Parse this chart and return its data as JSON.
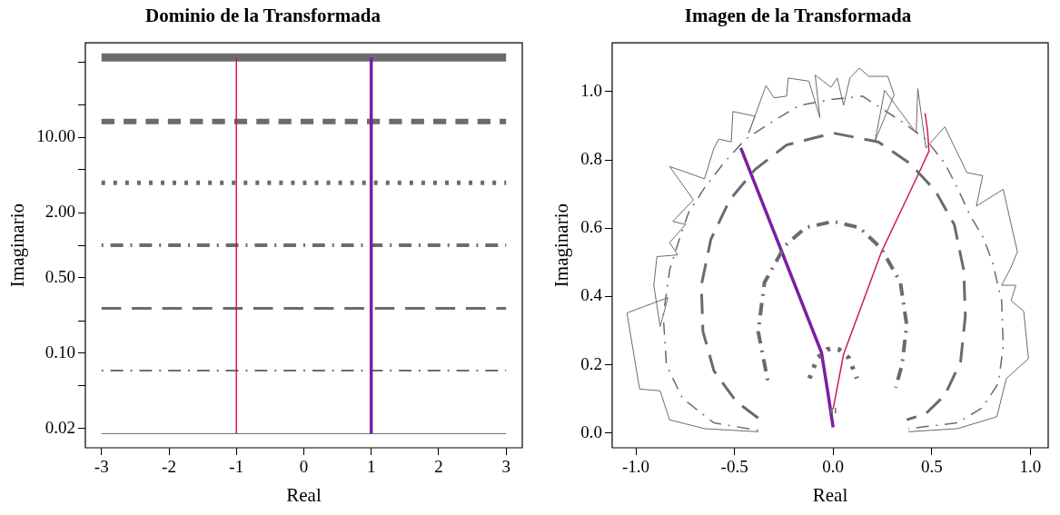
{
  "chart_data": [
    {
      "type": "line",
      "title": "Dominio de la Transformada",
      "xlabel": "Real",
      "ylabel": "Imaginario",
      "log": "y",
      "xlim": [
        -3.24,
        3.24
      ],
      "xticks": [
        -3,
        -2,
        -1,
        0,
        1,
        2,
        3
      ],
      "ylim": [
        0.0133,
        75
      ],
      "yticks": [
        0.02,
        {
          "value": 0.05,
          "label": null
        },
        {
          "value": 0.1,
          "label": "0.10"
        },
        {
          "value": 0.2,
          "label": null
        },
        {
          "value": 0.5,
          "label": "0.50"
        },
        {
          "value": 1,
          "label": null
        },
        {
          "value": 2,
          "label": "2.00"
        },
        {
          "value": 5,
          "label": null
        },
        {
          "value": 10,
          "label": "10.00"
        },
        {
          "value": 20,
          "label": null
        },
        {
          "value": 50,
          "label": null
        }
      ],
      "legend": false,
      "series": [
        {
          "color": "#6b6b6b",
          "line_style": "solid",
          "x": [
            -3,
            3
          ],
          "values": [
            0.018,
            0.018
          ]
        },
        {
          "color": "#6b6b6b",
          "line_style": "dashdot",
          "x": [
            -3,
            3
          ],
          "values": [
            0.069,
            0.069
          ]
        },
        {
          "color": "#6b6b6b",
          "line_style": "longdash",
          "x": [
            -3,
            3
          ],
          "values": [
            0.26,
            0.26
          ]
        },
        {
          "color": "#6b6b6b",
          "line_style": "dashdot",
          "x": [
            -3,
            3
          ],
          "values": [
            1,
            1
          ]
        },
        {
          "color": "#6b6b6b",
          "line_style": "dotted",
          "x": [
            -3,
            3
          ],
          "values": [
            3.8,
            3.8
          ]
        },
        {
          "color": "#6b6b6b",
          "line_style": "dashed",
          "x": [
            -3,
            3
          ],
          "values": [
            14,
            14
          ]
        },
        {
          "color": "#6b6b6b",
          "line_style": "solid",
          "x": [
            -3,
            3
          ],
          "values": [
            55,
            55
          ]
        }
      ],
      "ref_lines": [
        {
          "axis": "x",
          "value": -1,
          "color": "#d01c4b"
        },
        {
          "axis": "x",
          "value": 1,
          "color": "#7b1fa2"
        }
      ]
    },
    {
      "type": "line",
      "title": "Imagen de la Transformada",
      "xlabel": "Real",
      "ylabel": "Imaginario",
      "xlim": [
        -1.12,
        1.09
      ],
      "xticks": [
        {
          "value": -1,
          "label": "-1.0"
        },
        {
          "value": -0.5,
          "label": "-0.5"
        },
        {
          "value": 0,
          "label": "0.0"
        },
        {
          "value": 0.5,
          "label": "0.5"
        },
        {
          "value": 1,
          "label": "1.0"
        }
      ],
      "ylim": [
        -0.043,
        1.143
      ],
      "yticks": [
        {
          "value": 0,
          "label": "0.0"
        },
        {
          "value": 0.2,
          "label": "0.2"
        },
        {
          "value": 0.4,
          "label": "0.4"
        },
        {
          "value": 0.6,
          "label": "0.6"
        },
        {
          "value": 0.8,
          "label": "0.8"
        },
        {
          "value": 1,
          "label": "1.0"
        }
      ],
      "legend": false,
      "series": [
        {
          "color": "#6b6b6b",
          "line_style": "solid",
          "x": [
            -0.38,
            -0.652,
            -0.829,
            -0.877,
            -0.981,
            -1.045,
            -0.837,
            -0.877,
            -0.909,
            -0.893,
            -0.788,
            -0.829,
            -0.748,
            -0.813,
            -0.708,
            -0.829,
            -0.652,
            -0.604,
            -0.58,
            -0.516,
            -0.508,
            -0.396,
            -0.428,
            -0.34,
            -0.3,
            -0.236,
            -0.228,
            -0.123,
            -0.067,
            -0.091,
            -0.011,
            0.021,
            0.053,
            0.085,
            0.133,
            0.181,
            0.277,
            0.309,
            0.213,
            0.261,
            0.421,
            0.429,
            0.47,
            0.566,
            0.678,
            0.758,
            0.726,
            0.862,
            0.934,
            0.902,
            0.854,
            0.926,
            0.902,
            0.966,
            0.99,
            0.878,
            0.83,
            0.63,
            0.381
          ],
          "values": [
            0.004,
            0.013,
            0.039,
            0.124,
            0.129,
            0.352,
            0.397,
            0.312,
            0.433,
            0.517,
            0.522,
            0.558,
            0.611,
            0.62,
            0.683,
            0.781,
            0.745,
            0.835,
            0.861,
            0.853,
            0.942,
            0.928,
            0.879,
            1.018,
            0.982,
            0.987,
            1.04,
            1.031,
            0.924,
            1.049,
            1.013,
            1.04,
            0.96,
            1.04,
            1.069,
            1.045,
            1.045,
            0.991,
            0.857,
            1.004,
            0.879,
            1.009,
            0.835,
            0.897,
            0.763,
            0.754,
            0.665,
            0.714,
            0.531,
            0.486,
            0.433,
            0.433,
            0.388,
            0.357,
            0.218,
            0.16,
            0.048,
            0.013,
            0.004
          ]
        },
        {
          "color": "#6b6b6b",
          "line_style": "dashdot",
          "x": [
            -0.38,
            -0.604,
            -0.764,
            -0.845,
            -0.861,
            -0.829,
            -0.78,
            -0.732,
            -0.652,
            -0.556,
            -0.444,
            -0.3,
            -0.171,
            0,
            0.149,
            0.245,
            0.341,
            0.47,
            0.566,
            0.63,
            0.694,
            0.758,
            0.806,
            0.854,
            0.862,
            0.838,
            0.758,
            0.63,
            0.381
          ],
          "values": [
            0.008,
            0.03,
            0.102,
            0.2,
            0.343,
            0.477,
            0.567,
            0.647,
            0.718,
            0.79,
            0.861,
            0.915,
            0.96,
            0.978,
            0.987,
            0.951,
            0.915,
            0.861,
            0.79,
            0.718,
            0.638,
            0.576,
            0.504,
            0.388,
            0.254,
            0.147,
            0.075,
            0.03,
            0.013
          ]
        },
        {
          "color": "#6b6b6b",
          "line_style": "longdash",
          "x": [
            -0.38,
            -0.492,
            -0.604,
            -0.66,
            -0.668,
            -0.62,
            -0.524,
            -0.396,
            -0.236,
            0,
            0.229,
            0.389,
            0.518,
            0.614,
            0.662,
            0.67,
            0.646,
            0.566,
            0.47,
            0.373
          ],
          "values": [
            0.044,
            0.093,
            0.182,
            0.298,
            0.433,
            0.567,
            0.683,
            0.772,
            0.844,
            0.879,
            0.853,
            0.79,
            0.71,
            0.611,
            0.477,
            0.343,
            0.209,
            0.111,
            0.057,
            0.039
          ]
        },
        {
          "color": "#6b6b6b",
          "line_style": "dashdot",
          "x": [
            -0.332,
            -0.38,
            -0.348,
            -0.244,
            -0.139,
            0,
            0.133,
            0.245,
            0.341,
            0.373,
            0.349,
            0.317
          ],
          "values": [
            0.155,
            0.298,
            0.441,
            0.549,
            0.602,
            0.62,
            0.602,
            0.54,
            0.441,
            0.316,
            0.2,
            0.133
          ]
        },
        {
          "color": "#6b6b6b",
          "line_style": "dotted",
          "x": [
            -0.12,
            -0.08,
            -0.03,
            0,
            0.03,
            0.08,
            0.12
          ],
          "values": [
            0.16,
            0.22,
            0.245,
            0.25,
            0.245,
            0.22,
            0.16
          ]
        },
        {
          "color": "#6b6b6b",
          "line_style": "dashed",
          "x": [
            -0.015,
            0.015
          ],
          "values": [
            0.066,
            0.066
          ]
        },
        {
          "color": "#7b1fa2",
          "line_style": "solid",
          "x": [
            0,
            -0.027,
            -0.059,
            -0.26,
            -0.468
          ],
          "values": [
            0.017,
            0.12,
            0.236,
            0.531,
            0.835
          ]
        },
        {
          "color": "#d01c4b",
          "line_style": "solid",
          "x": [
            0,
            0.053,
            0.245,
            0.421,
            0.486,
            0.478,
            0.466
          ],
          "values": [
            0.071,
            0.231,
            0.531,
            0.745,
            0.826,
            0.888,
            0.937
          ]
        }
      ]
    }
  ]
}
